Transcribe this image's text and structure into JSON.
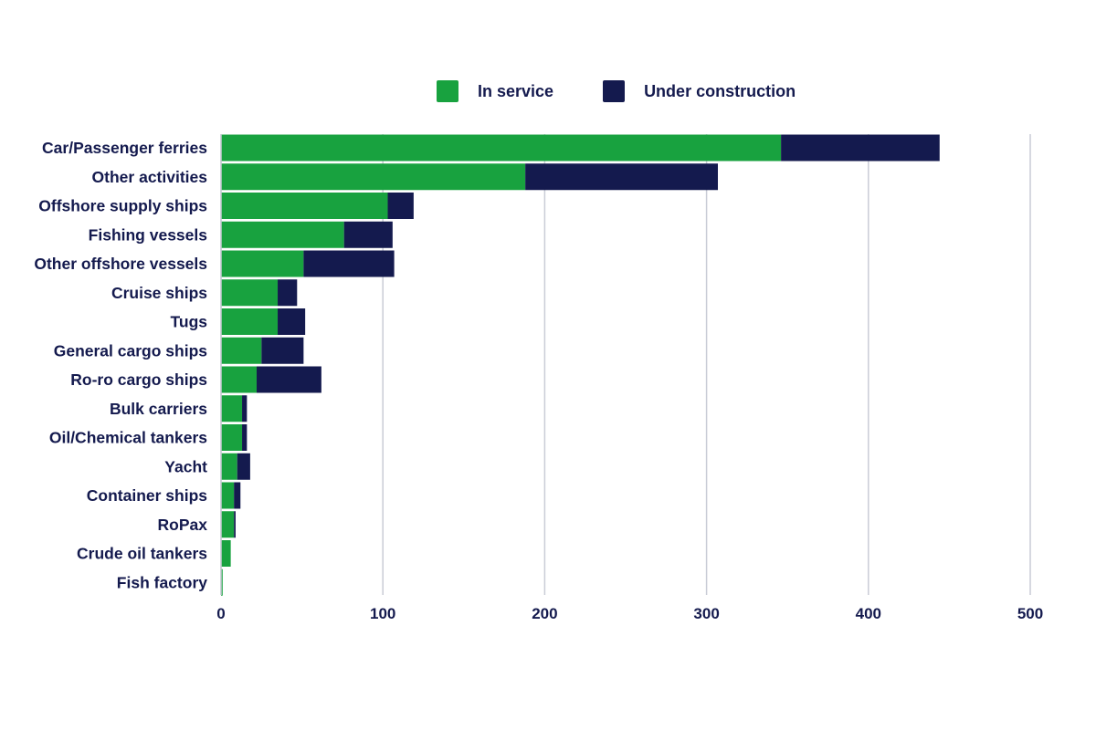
{
  "chart_data": {
    "type": "bar",
    "orientation": "horizontal",
    "stacked": true,
    "title": "",
    "xlabel": "",
    "ylabel": "",
    "categories": [
      "Car/Passenger ferries",
      "Other activities",
      "Offshore supply ships",
      "Fishing vessels",
      "Other offshore vessels",
      "Cruise ships",
      "Tugs",
      "General cargo ships",
      "Ro-ro cargo ships",
      "Bulk carriers",
      "Oil/Chemical tankers",
      "Yacht",
      "Container ships",
      "RoPax",
      "Crude oil tankers",
      "Fish factory"
    ],
    "series": [
      {
        "name": "In service",
        "color": "#18a23f",
        "values": [
          346,
          188,
          103,
          76,
          51,
          35,
          35,
          25,
          22,
          13,
          13,
          10,
          8,
          8,
          6,
          1
        ]
      },
      {
        "name": "Under construction",
        "color": "#141a4e",
        "values": [
          98,
          119,
          16,
          30,
          56,
          12,
          17,
          26,
          40,
          3,
          3,
          8,
          4,
          1,
          0,
          0
        ]
      }
    ],
    "xlim": [
      0,
      500
    ],
    "xticks": [
      0,
      100,
      200,
      300,
      400,
      500
    ],
    "grid": true,
    "legend_position": "top"
  }
}
